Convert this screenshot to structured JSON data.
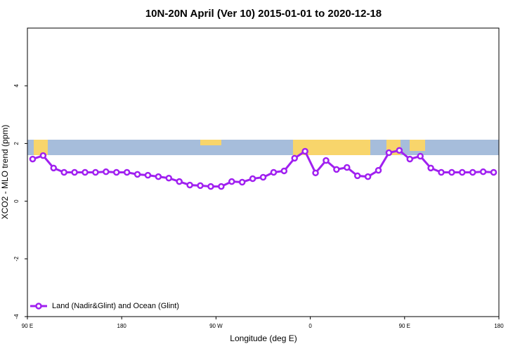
{
  "chart_data": {
    "type": "line",
    "title": "10N-20N April (Ver 10)   2015-01-01 to 2020-12-18",
    "x_label": "Longitude (deg E)",
    "y_label": "XCO2 - MLO trend (ppm)",
    "x": [
      95,
      105,
      115,
      125,
      135,
      145,
      155,
      165,
      175,
      185,
      195,
      205,
      215,
      225,
      235,
      245,
      255,
      265,
      275,
      285,
      295,
      305,
      315,
      325,
      335,
      345,
      355,
      365,
      375,
      385,
      395,
      405,
      415,
      425,
      435,
      445,
      455,
      465,
      475,
      485,
      495,
      505,
      515,
      525,
      535
    ],
    "series": [
      {
        "name": "Land (Nadir&Glint) and Ocean (Glint)",
        "color": "#a020f0",
        "values": [
          1.46,
          1.58,
          1.15,
          1.0,
          1.0,
          1.0,
          1.0,
          1.02,
          1.0,
          1.0,
          0.93,
          0.9,
          0.85,
          0.8,
          0.68,
          0.56,
          0.54,
          0.51,
          0.51,
          0.68,
          0.66,
          0.78,
          0.83,
          1.0,
          1.05,
          1.49,
          1.73,
          0.98,
          1.41,
          1.1,
          1.17,
          0.88,
          0.85,
          1.07,
          1.68,
          1.76,
          1.46,
          1.56,
          1.15,
          1.0,
          1.0,
          1.0,
          1.0,
          1.02,
          1.0
        ]
      }
    ],
    "xlim": [
      90,
      540
    ],
    "xticks": [
      {
        "value": 90,
        "label": "90 E"
      },
      180,
      {
        "value": 270,
        "label": "90 W"
      },
      {
        "value": 360,
        "label": "0"
      },
      {
        "value": 450,
        "label": "90 E"
      },
      {
        "value": 540,
        "label": "180"
      }
    ],
    "ylim": [
      -4,
      6
    ],
    "yticks": [
      -4,
      -2,
      0,
      2,
      4
    ],
    "legend": "bottom-left"
  }
}
